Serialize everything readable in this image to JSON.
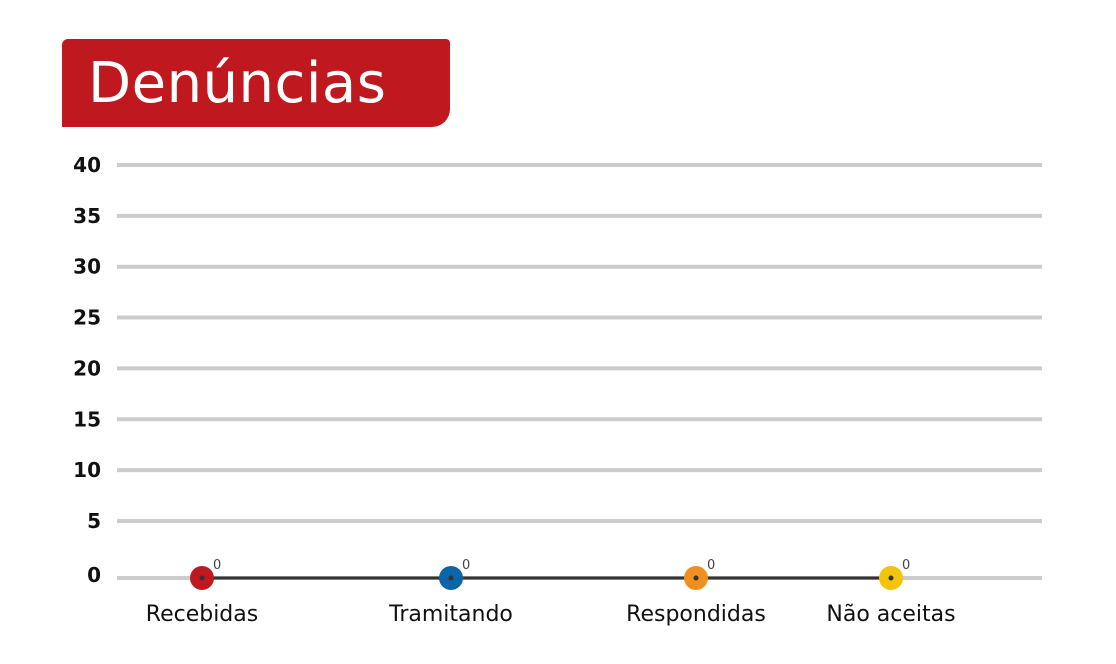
{
  "title": "Denúncias",
  "chart_data": {
    "type": "line",
    "title": "Denúncias",
    "categories": [
      "Recebidas",
      "Tramitando",
      "Respondidas",
      "Não aceitas"
    ],
    "values": [
      0,
      0,
      0,
      0
    ],
    "data_labels": [
      "0",
      "0",
      "0",
      "0"
    ],
    "point_colors": [
      "#c0181f",
      "#0a66a8",
      "#ee8f1e",
      "#f2c40c"
    ],
    "line_color": "#333333",
    "grid_color": "#cccccc",
    "yticks": [
      0,
      5,
      10,
      15,
      20,
      25,
      30,
      35,
      40
    ],
    "ylim": [
      0,
      40
    ],
    "grid": true,
    "legend": "none"
  }
}
